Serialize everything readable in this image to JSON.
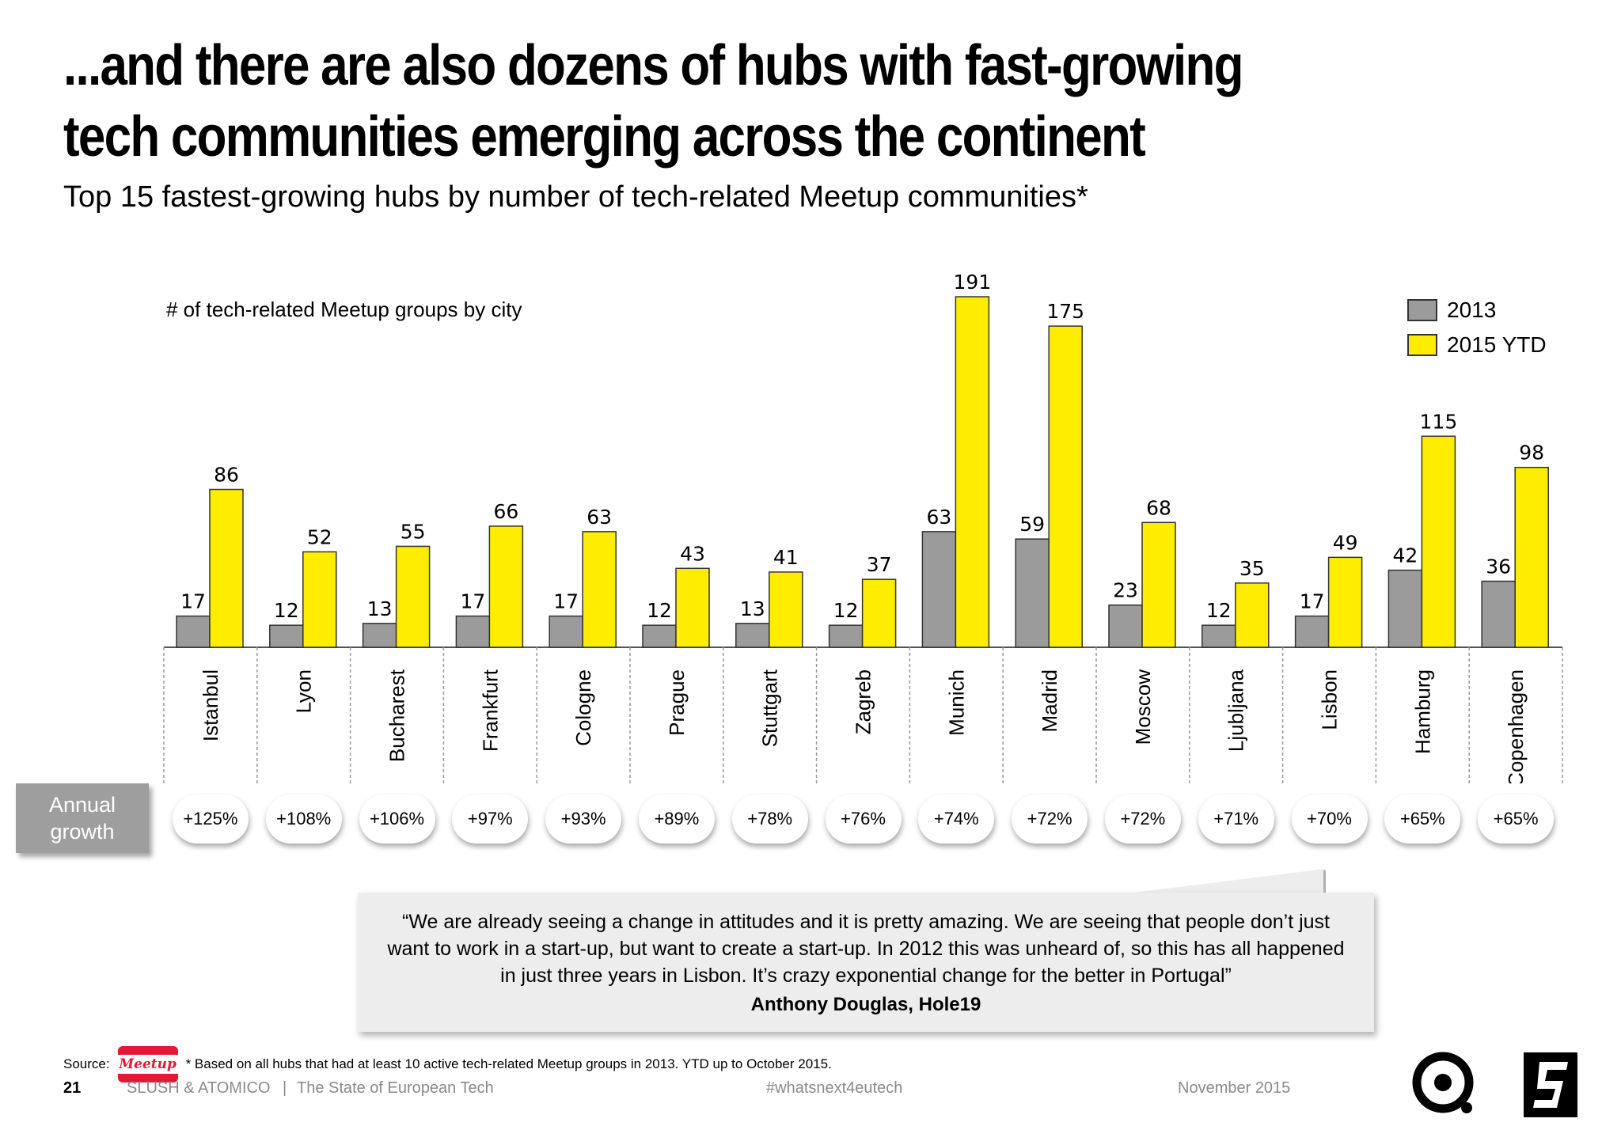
{
  "headline": "...and there are also dozens of hubs with fast-growing tech communities emerging across the continent",
  "subtitle": "Top 15 fastest-growing hubs by number of tech-related Meetup communities*",
  "chart_data": {
    "type": "bar",
    "title": "# of tech-related Meetup groups by city",
    "categories": [
      "Istanbul",
      "Lyon",
      "Bucharest",
      "Frankfurt",
      "Cologne",
      "Prague",
      "Stuttgart",
      "Zagreb",
      "Munich",
      "Madrid",
      "Moscow",
      "Ljubljana",
      "Lisbon",
      "Hamburg",
      "Copenhagen"
    ],
    "series": [
      {
        "name": "2013",
        "color": "#9b9b9b",
        "values": [
          17,
          12,
          13,
          17,
          17,
          12,
          13,
          12,
          63,
          59,
          23,
          12,
          17,
          42,
          36
        ]
      },
      {
        "name": "2015 YTD",
        "color": "#ffed00",
        "values": [
          86,
          52,
          55,
          66,
          63,
          43,
          41,
          37,
          191,
          175,
          68,
          35,
          49,
          115,
          98
        ]
      }
    ],
    "ylim": [
      0,
      200
    ],
    "legend": "top-right",
    "grid": false
  },
  "growth": {
    "label": "Annual growth",
    "values": [
      "+125%",
      "+108%",
      "+106%",
      "+97%",
      "+93%",
      "+89%",
      "+78%",
      "+76%",
      "+74%",
      "+72%",
      "+72%",
      "+71%",
      "+70%",
      "+65%",
      "+65%"
    ]
  },
  "quote": {
    "text": "“We are already seeing a change in attitudes and it is pretty amazing. We are seeing that people don’t just want to work in a start-up, but want to create a start-up. In 2012 this was unheard of, so this has all happened in just three years in Lisbon. It’s crazy exponential change for the better in Portugal”",
    "author": "Anthony Douglas, Hole19"
  },
  "source": {
    "label": "Source:",
    "logo_text": "Meetup",
    "note": "* Based on all hubs that had at least 10 active tech-related Meetup groups in 2013. YTD up to October 2015."
  },
  "footer": {
    "page": "21",
    "org": "SLUSH & ATOMICO",
    "separator": "|",
    "report": "The State of European Tech",
    "hashtag": "#whatsnext4eutech",
    "date": "November 2015"
  }
}
